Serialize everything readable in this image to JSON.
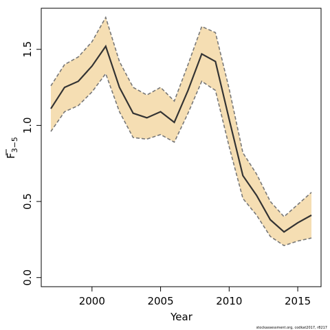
{
  "chart_data": {
    "type": "line",
    "xlabel": "Year",
    "ylabel_main": "F",
    "ylabel_sub": "3−5",
    "xlim": [
      1996.3,
      2016.7
    ],
    "ylim": [
      -0.06,
      1.77
    ],
    "xticks": [
      2000,
      2005,
      2010,
      2015
    ],
    "yticks": [
      0.0,
      0.5,
      1.0,
      1.5
    ],
    "xtick_labels": [
      "2000",
      "2005",
      "2010",
      "2015"
    ],
    "ytick_labels": [
      "0.0",
      "0.5",
      "1.0",
      "1.5"
    ],
    "x": [
      1997,
      1998,
      1999,
      2000,
      2001,
      2002,
      2003,
      2004,
      2005,
      2006,
      2007,
      2008,
      2009,
      2010,
      2011,
      2012,
      2013,
      2014,
      2015,
      2016
    ],
    "series": [
      {
        "values": [
          1.11,
          1.25,
          1.29,
          1.39,
          1.52,
          1.25,
          1.08,
          1.05,
          1.09,
          1.02,
          1.23,
          1.47,
          1.42,
          1.04,
          0.67,
          0.54,
          0.38,
          0.3,
          0.36,
          0.41
        ],
        "lower": [
          0.96,
          1.09,
          1.13,
          1.22,
          1.34,
          1.09,
          0.92,
          0.91,
          0.94,
          0.89,
          1.08,
          1.29,
          1.23,
          0.86,
          0.52,
          0.41,
          0.27,
          0.21,
          0.24,
          0.26
        ],
        "upper": [
          1.26,
          1.4,
          1.45,
          1.55,
          1.71,
          1.42,
          1.25,
          1.2,
          1.25,
          1.16,
          1.4,
          1.65,
          1.61,
          1.24,
          0.82,
          0.68,
          0.5,
          0.4,
          0.48,
          0.56
        ]
      }
    ],
    "colors": {
      "band": "#f5deb3",
      "line": "#333333",
      "bound": "#777777",
      "axis": "#000000"
    },
    "grid": false
  },
  "footer": "stockassessment.org, codkat2017, r8217"
}
